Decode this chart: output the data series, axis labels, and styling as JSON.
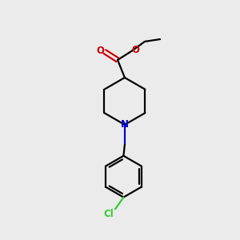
{
  "background_color": "#ebebeb",
  "bond_color": "#000000",
  "n_color": "#0000cc",
  "o_color": "#cc0000",
  "cl_color": "#33cc33",
  "line_width": 1.6,
  "figsize": [
    3.0,
    3.0
  ],
  "dpi": 100,
  "xlim": [
    0,
    10
  ],
  "ylim": [
    0,
    10
  ]
}
